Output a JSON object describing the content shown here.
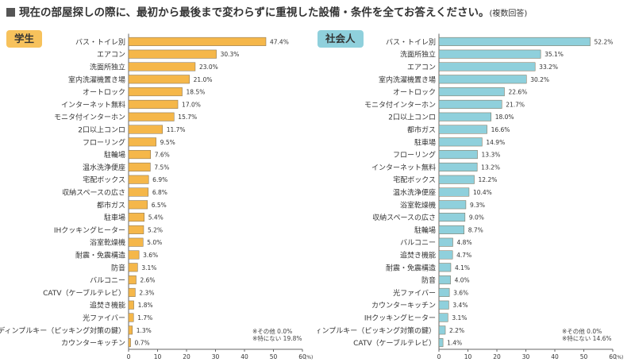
{
  "title": {
    "text": "現在の部屋探しの際に、最初から最後まで変わらずに重視した設備・条件を全てお答えください。",
    "note": "(複数回答)"
  },
  "chart_data": [
    {
      "type": "bar",
      "orientation": "horizontal",
      "badge": "学生",
      "color": "#f5b74a",
      "xlim": [
        0,
        60
      ],
      "ticks": [
        "0",
        "10",
        "20",
        "30",
        "40",
        "50",
        "60"
      ],
      "unit": "(%)",
      "categories": [
        "バス・トイレ別",
        "エアコン",
        "洗面所独立",
        "室内洗濯機置き場",
        "オートロック",
        "インターネット無料",
        "モニタ付インターホン",
        "2口以上コンロ",
        "フローリング",
        "駐輪場",
        "温水洗浄便座",
        "宅配ボックス",
        "収納スペースの広さ",
        "都市ガス",
        "駐車場",
        "IHクッキングヒーター",
        "浴室乾燥機",
        "耐震・免震構造",
        "防音",
        "バルコニー",
        "CATV（ケーブルテレビ）",
        "追焚き機能",
        "光ファイバー",
        "ディンプルキー（ピッキング対策の鍵）",
        "カウンターキッチン"
      ],
      "values": [
        47.4,
        30.3,
        23.0,
        21.0,
        18.5,
        17.0,
        15.7,
        11.7,
        9.5,
        7.6,
        7.5,
        6.9,
        6.8,
        6.5,
        5.4,
        5.2,
        5.0,
        3.6,
        3.1,
        2.6,
        2.3,
        1.8,
        1.7,
        1.3,
        0.7
      ],
      "labels": [
        "47.4%",
        "30.3%",
        "23.0%",
        "21.0%",
        "18.5%",
        "17.0%",
        "15.7%",
        "11.7%",
        "9.5%",
        "7.6%",
        "7.5%",
        "6.9%",
        "6.8%",
        "6.5%",
        "5.4%",
        "5.2%",
        "5.0%",
        "3.6%",
        "3.1%",
        "2.6%",
        "2.3%",
        "1.8%",
        "1.7%",
        "1.3%",
        "0.7%"
      ],
      "notes": [
        "※その他 0.0%",
        "※特にない 19.8%"
      ]
    },
    {
      "type": "bar",
      "orientation": "horizontal",
      "badge": "社会人",
      "color": "#8fd0dc",
      "xlim": [
        0,
        60
      ],
      "ticks": [
        "0",
        "10",
        "20",
        "30",
        "40",
        "50",
        "60"
      ],
      "unit": "(%)",
      "categories": [
        "バス・トイレ別",
        "洗面所独立",
        "エアコン",
        "室内洗濯機置き場",
        "オートロック",
        "モニタ付インターホン",
        "2口以上コンロ",
        "都市ガス",
        "駐車場",
        "フローリング",
        "インターネット無料",
        "宅配ボックス",
        "温水洗浄便座",
        "浴室乾燥機",
        "収納スペースの広さ",
        "駐輪場",
        "バルコニー",
        "追焚き機能",
        "耐震・免震構造",
        "防音",
        "光ファイバー",
        "カウンターキッチン",
        "IHクッキングヒーター",
        "ディンプルキー（ピッキング対策の鍵）",
        "CATV（ケーブルテレビ）"
      ],
      "values": [
        52.2,
        35.1,
        33.2,
        30.2,
        22.6,
        21.7,
        18.0,
        16.6,
        14.9,
        13.3,
        13.2,
        12.2,
        10.4,
        9.3,
        9.0,
        8.7,
        4.8,
        4.7,
        4.1,
        4.0,
        3.6,
        3.4,
        3.1,
        2.2,
        1.4
      ],
      "labels": [
        "52.2%",
        "35.1%",
        "33.2%",
        "30.2%",
        "22.6%",
        "21.7%",
        "18.0%",
        "16.6%",
        "14.9%",
        "13.3%",
        "13.2%",
        "12.2%",
        "10.4%",
        "9.3%",
        "9.0%",
        "8.7%",
        "4.8%",
        "4.7%",
        "4.1%",
        "4.0%",
        "3.6%",
        "3.4%",
        "3.1%",
        "2.2%",
        "1.4%"
      ],
      "notes": [
        "※その他 0.0%",
        "※特にない 14.6%"
      ]
    }
  ]
}
